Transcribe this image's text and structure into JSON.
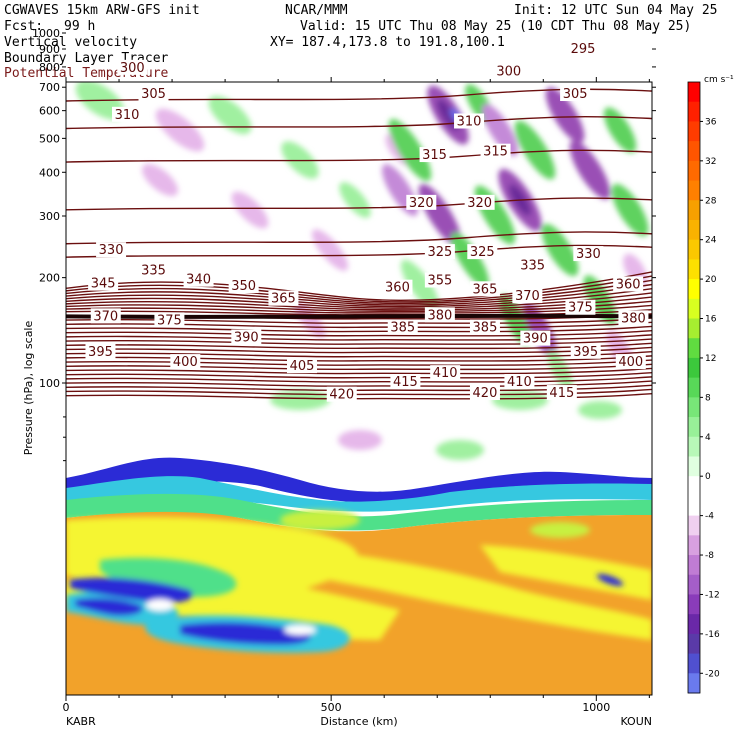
{
  "header": {
    "title": "CGWAVES 15km ARW-GFS init",
    "center": "NCAR/MMM",
    "init": "Init: 12 UTC Sun 04 May 25",
    "fcst_label": "Fcst:",
    "fcst_value": "99 h",
    "valid": "Valid: 15 UTC Thu 08 May 25 (10 CDT Thu 08 May 25)",
    "field1": "Vertical velocity",
    "field2": "Boundary Layer Tracer",
    "field3": "Potential Temperature",
    "xy": "XY= 187.4,173.8 to 191.8,100.1"
  },
  "colors": {
    "contour": "#6b0f0f",
    "field3_text": "#7a1a1a"
  },
  "chart_data": {
    "type": "heatmap",
    "xlabel": "Distance (km)",
    "ylabel": "Pressure (hPa), log scale",
    "x_ticks": [
      "0",
      "500",
      "1000"
    ],
    "x_tick_values": [
      0,
      500,
      1000
    ],
    "xlim": [
      0,
      1105
    ],
    "y_ticks": [
      "100",
      "200",
      "300",
      "400",
      "500",
      "600",
      "700",
      "800",
      "900",
      "1000"
    ],
    "y_tick_values": [
      100,
      200,
      300,
      400,
      500,
      600,
      700,
      800,
      900,
      1000
    ],
    "endpoint_left": "KABR",
    "endpoint_right": "KOUN",
    "colorbar_unit": "cm s⁻¹",
    "colorbar_labels": [
      "36",
      "32",
      "28",
      "24",
      "20",
      "16",
      "12",
      "8",
      "4",
      "0",
      "-4",
      "-8",
      "-12",
      "-16",
      "-20"
    ],
    "colorbar_values": [
      36,
      32,
      28,
      24,
      20,
      16,
      12,
      8,
      4,
      0,
      -4,
      -8,
      -12,
      -16,
      -20
    ],
    "contour_labels": [
      {
        "text": "420",
        "x": 520,
        "p": 92
      },
      {
        "text": "415",
        "x": 640,
        "p": 100
      },
      {
        "text": "410",
        "x": 715,
        "p": 106
      },
      {
        "text": "420",
        "x": 790,
        "p": 93
      },
      {
        "text": "410",
        "x": 855,
        "p": 100
      },
      {
        "text": "415",
        "x": 935,
        "p": 93
      },
      {
        "text": "395",
        "x": 65,
        "p": 122
      },
      {
        "text": "400",
        "x": 225,
        "p": 114
      },
      {
        "text": "405",
        "x": 445,
        "p": 111
      },
      {
        "text": "390",
        "x": 340,
        "p": 134
      },
      {
        "text": "385",
        "x": 635,
        "p": 143
      },
      {
        "text": "380",
        "x": 705,
        "p": 155
      },
      {
        "text": "385",
        "x": 790,
        "p": 143
      },
      {
        "text": "390",
        "x": 885,
        "p": 133
      },
      {
        "text": "395",
        "x": 980,
        "p": 122
      },
      {
        "text": "400",
        "x": 1065,
        "p": 114
      },
      {
        "text": "370",
        "x": 75,
        "p": 154
      },
      {
        "text": "375",
        "x": 195,
        "p": 150
      },
      {
        "text": "365",
        "x": 410,
        "p": 173
      },
      {
        "text": "360",
        "x": 625,
        "p": 186
      },
      {
        "text": "355",
        "x": 705,
        "p": 195
      },
      {
        "text": "365",
        "x": 790,
        "p": 184
      },
      {
        "text": "370",
        "x": 870,
        "p": 176
      },
      {
        "text": "375",
        "x": 970,
        "p": 163
      },
      {
        "text": "380",
        "x": 1070,
        "p": 152
      },
      {
        "text": "345",
        "x": 70,
        "p": 191
      },
      {
        "text": "340",
        "x": 250,
        "p": 196
      },
      {
        "text": "350",
        "x": 335,
        "p": 188
      },
      {
        "text": "335",
        "x": 165,
        "p": 208
      },
      {
        "text": "360",
        "x": 1060,
        "p": 190
      },
      {
        "text": "330",
        "x": 85,
        "p": 238
      },
      {
        "text": "325",
        "x": 705,
        "p": 235
      },
      {
        "text": "325",
        "x": 785,
        "p": 235
      },
      {
        "text": "335",
        "x": 880,
        "p": 215
      },
      {
        "text": "330",
        "x": 985,
        "p": 232
      },
      {
        "text": "320",
        "x": 670,
        "p": 325
      },
      {
        "text": "320",
        "x": 780,
        "p": 325
      },
      {
        "text": "315",
        "x": 695,
        "p": 445
      },
      {
        "text": "315",
        "x": 810,
        "p": 455
      },
      {
        "text": "310",
        "x": 115,
        "p": 580
      },
      {
        "text": "310",
        "x": 760,
        "p": 555
      },
      {
        "text": "305",
        "x": 165,
        "p": 665
      },
      {
        "text": "305",
        "x": 960,
        "p": 665
      },
      {
        "text": "300",
        "x": 125,
        "p": 790
      },
      {
        "text": "300",
        "x": 835,
        "p": 770
      },
      {
        "text": "295",
        "x": 975,
        "p": 895
      }
    ]
  }
}
